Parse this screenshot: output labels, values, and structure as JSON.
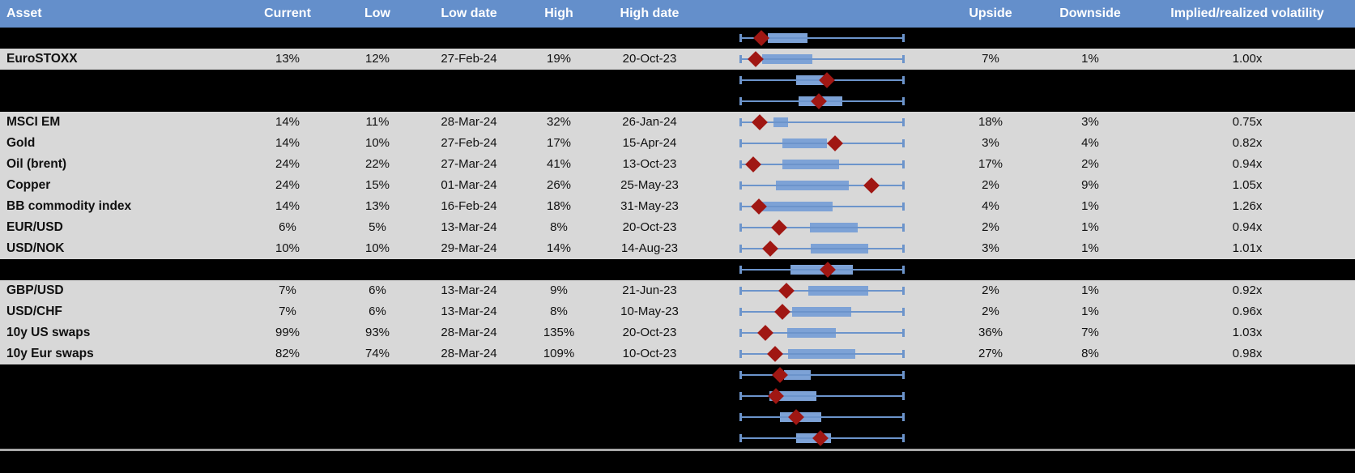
{
  "title": "Implied volatility table with box-and-whisker range charts",
  "colors": {
    "header_bg": "#648FCB",
    "header_text": "#FFFFFF",
    "row_bg": "#D8D8D8",
    "blank_row_bg": "#000000",
    "text": "#101010",
    "box_fill": "#7DA2D6",
    "whisker": "#6C94CB",
    "marker": "#A01713",
    "separator": "#A8A8A8"
  },
  "header": {
    "asset": "Asset",
    "current": "Current",
    "low": "Low",
    "low_date": "Low date",
    "high": "High",
    "high_date": "High date",
    "upside": "Upside",
    "downside": "Downside",
    "ivrv": "Implied/realized volatility"
  },
  "rows": [
    {
      "type": "blank",
      "asset": "",
      "current": "",
      "low": "",
      "low_date": "",
      "high": "",
      "high_date": "",
      "upside": "",
      "downside": "",
      "ivrv": "",
      "plot": {
        "whisker_lo": 0,
        "box_lo": 0.17,
        "box_hi": 0.41,
        "whisker_hi": 1,
        "marker": 0.13
      }
    },
    {
      "type": "data",
      "asset": "EuroSTOXX",
      "current": "13%",
      "low": "12%",
      "low_date": "27-Feb-24",
      "high": "19%",
      "high_date": "20-Oct-23",
      "upside": "7%",
      "downside": "1%",
      "ivrv": "1.00x",
      "plot": {
        "whisker_lo": 0,
        "box_lo": 0.137,
        "box_hi": 0.44,
        "whisker_hi": 1,
        "marker": 0.098
      }
    },
    {
      "type": "blank",
      "asset": "",
      "current": "",
      "low": "",
      "low_date": "",
      "high": "",
      "high_date": "",
      "upside": "",
      "downside": "",
      "ivrv": "",
      "plot": {
        "whisker_lo": 0,
        "box_lo": 0.343,
        "box_hi": 0.549,
        "whisker_hi": 1,
        "marker": 0.529
      }
    },
    {
      "type": "blank",
      "asset": "",
      "current": "",
      "low": "",
      "low_date": "",
      "high": "",
      "high_date": "",
      "upside": "",
      "downside": "",
      "ivrv": "",
      "plot": {
        "whisker_lo": 0,
        "box_lo": 0.358,
        "box_hi": 0.623,
        "whisker_hi": 1,
        "marker": 0.48
      }
    },
    {
      "type": "data",
      "asset": "MSCI EM",
      "current": "14%",
      "low": "11%",
      "low_date": "28-Mar-24",
      "high": "32%",
      "high_date": "26-Jan-24",
      "upside": "18%",
      "downside": "3%",
      "ivrv": "0.75x",
      "plot": {
        "whisker_lo": 0,
        "box_lo": 0.206,
        "box_hi": 0.294,
        "whisker_hi": 1,
        "marker": 0.123
      }
    },
    {
      "type": "data",
      "asset": "Gold",
      "current": "14%",
      "low": "10%",
      "low_date": "27-Feb-24",
      "high": "17%",
      "high_date": "15-Apr-24",
      "upside": "3%",
      "downside": "4%",
      "ivrv": "0.82x",
      "plot": {
        "whisker_lo": 0,
        "box_lo": 0.26,
        "box_hi": 0.529,
        "whisker_hi": 1,
        "marker": 0.578
      }
    },
    {
      "type": "data",
      "asset": "Oil (brent)",
      "current": "24%",
      "low": "22%",
      "low_date": "27-Mar-24",
      "high": "41%",
      "high_date": "13-Oct-23",
      "upside": "17%",
      "downside": "2%",
      "ivrv": "0.94x",
      "plot": {
        "whisker_lo": 0,
        "box_lo": 0.26,
        "box_hi": 0.603,
        "whisker_hi": 1,
        "marker": 0.083
      }
    },
    {
      "type": "data",
      "asset": "Copper",
      "current": "24%",
      "low": "15%",
      "low_date": "01-Mar-24",
      "high": "26%",
      "high_date": "25-May-23",
      "upside": "2%",
      "downside": "9%",
      "ivrv": "1.05x",
      "plot": {
        "whisker_lo": 0,
        "box_lo": 0.221,
        "box_hi": 0.662,
        "whisker_hi": 1,
        "marker": 0.799
      }
    },
    {
      "type": "data",
      "asset": "BB commodity index",
      "current": "14%",
      "low": "13%",
      "low_date": "16-Feb-24",
      "high": "18%",
      "high_date": "31-May-23",
      "upside": "4%",
      "downside": "1%",
      "ivrv": "1.26x",
      "plot": {
        "whisker_lo": 0,
        "box_lo": 0.137,
        "box_hi": 0.564,
        "whisker_hi": 1,
        "marker": 0.118
      }
    },
    {
      "type": "data",
      "asset": "EUR/USD",
      "current": "6%",
      "low": "5%",
      "low_date": "13-Mar-24",
      "high": "8%",
      "high_date": "20-Oct-23",
      "upside": "2%",
      "downside": "1%",
      "ivrv": "0.94x",
      "plot": {
        "whisker_lo": 0,
        "box_lo": 0.426,
        "box_hi": 0.715,
        "whisker_hi": 1,
        "marker": 0.24
      }
    },
    {
      "type": "data",
      "asset": "USD/NOK",
      "current": "10%",
      "low": "10%",
      "low_date": "29-Mar-24",
      "high": "14%",
      "high_date": "14-Aug-23",
      "upside": "3%",
      "downside": "1%",
      "ivrv": "1.01x",
      "plot": {
        "whisker_lo": 0,
        "box_lo": 0.431,
        "box_hi": 0.779,
        "whisker_hi": 1,
        "marker": 0.186
      }
    },
    {
      "type": "blank",
      "asset": "",
      "current": "",
      "low": "",
      "low_date": "",
      "high": "",
      "high_date": "",
      "upside": "",
      "downside": "",
      "ivrv": "",
      "plot": {
        "whisker_lo": 0,
        "box_lo": 0.309,
        "box_hi": 0.686,
        "whisker_hi": 1,
        "marker": 0.534
      }
    },
    {
      "type": "data",
      "asset": "GBP/USD",
      "current": "7%",
      "low": "6%",
      "low_date": "13-Mar-24",
      "high": "9%",
      "high_date": "21-Jun-23",
      "upside": "2%",
      "downside": "1%",
      "ivrv": "0.92x",
      "plot": {
        "whisker_lo": 0,
        "box_lo": 0.417,
        "box_hi": 0.779,
        "whisker_hi": 1,
        "marker": 0.284
      }
    },
    {
      "type": "data",
      "asset": "USD/CHF",
      "current": "7%",
      "low": "6%",
      "low_date": "13-Mar-24",
      "high": "8%",
      "high_date": "10-May-23",
      "upside": "2%",
      "downside": "1%",
      "ivrv": "0.96x",
      "plot": {
        "whisker_lo": 0,
        "box_lo": 0.319,
        "box_hi": 0.677,
        "whisker_hi": 1,
        "marker": 0.26
      }
    },
    {
      "type": "data",
      "asset": "10y US swaps",
      "current": "99%",
      "low": "93%",
      "low_date": "28-Mar-24",
      "high": "135%",
      "high_date": "20-Oct-23",
      "upside": "36%",
      "downside": "7%",
      "ivrv": "1.03x",
      "plot": {
        "whisker_lo": 0,
        "box_lo": 0.289,
        "box_hi": 0.583,
        "whisker_hi": 1,
        "marker": 0.157
      }
    },
    {
      "type": "data",
      "asset": "10y Eur swaps",
      "current": "82%",
      "low": "74%",
      "low_date": "28-Mar-24",
      "high": "109%",
      "high_date": "10-Oct-23",
      "upside": "27%",
      "downside": "8%",
      "ivrv": "0.98x",
      "plot": {
        "whisker_lo": 0,
        "box_lo": 0.294,
        "box_hi": 0.701,
        "whisker_hi": 1,
        "marker": 0.216
      }
    },
    {
      "type": "blank",
      "asset": "",
      "current": "",
      "low": "",
      "low_date": "",
      "high": "",
      "high_date": "",
      "upside": "",
      "downside": "",
      "ivrv": "",
      "plot": {
        "whisker_lo": 0,
        "box_lo": 0.27,
        "box_hi": 0.431,
        "whisker_hi": 1,
        "marker": 0.245
      }
    },
    {
      "type": "blank",
      "asset": "",
      "current": "",
      "low": "",
      "low_date": "",
      "high": "",
      "high_date": "",
      "upside": "",
      "downside": "",
      "ivrv": "",
      "plot": {
        "whisker_lo": 0,
        "box_lo": 0.181,
        "box_hi": 0.466,
        "whisker_hi": 1,
        "marker": 0.221
      }
    },
    {
      "type": "blank",
      "asset": "",
      "current": "",
      "low": "",
      "low_date": "",
      "high": "",
      "high_date": "",
      "upside": "",
      "downside": "",
      "ivrv": "",
      "plot": {
        "whisker_lo": 0,
        "box_lo": 0.245,
        "box_hi": 0.495,
        "whisker_hi": 1,
        "marker": 0.343
      }
    },
    {
      "type": "blank",
      "asset": "",
      "current": "",
      "low": "",
      "low_date": "",
      "high": "",
      "high_date": "",
      "upside": "",
      "downside": "",
      "ivrv": "",
      "plot": {
        "whisker_lo": 0,
        "box_lo": 0.343,
        "box_hi": 0.554,
        "whisker_hi": 1,
        "marker": 0.49
      }
    }
  ]
}
